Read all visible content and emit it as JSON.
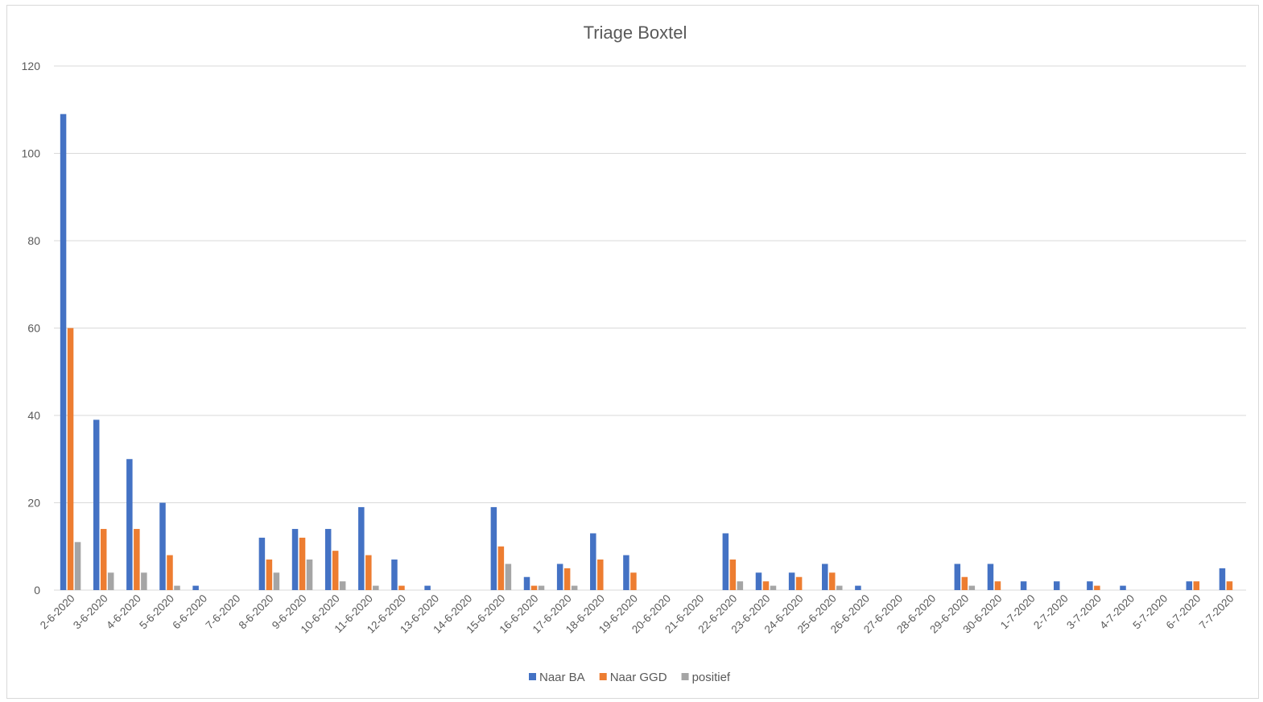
{
  "colors": {
    "naar_ba": "#4472C4",
    "naar_ggd": "#ED7D31",
    "positief": "#A5A5A5",
    "grid": "#d9d9d9",
    "text": "#595959"
  },
  "chart_data": {
    "type": "bar",
    "title": "Triage Boxtel",
    "xlabel": "",
    "ylabel": "",
    "ylim": [
      0,
      120
    ],
    "yticks": [
      0,
      20,
      40,
      60,
      80,
      100,
      120
    ],
    "grid": true,
    "legend_position": "bottom",
    "categories": [
      "2-6-2020",
      "3-6-2020",
      "4-6-2020",
      "5-6-2020",
      "6-6-2020",
      "7-6-2020",
      "8-6-2020",
      "9-6-2020",
      "10-6-2020",
      "11-6-2020",
      "12-6-2020",
      "13-6-2020",
      "14-6-2020",
      "15-6-2020",
      "16-6-2020",
      "17-6-2020",
      "18-6-2020",
      "19-6-2020",
      "20-6-2020",
      "21-6-2020",
      "22-6-2020",
      "23-6-2020",
      "24-6-2020",
      "25-6-2020",
      "26-6-2020",
      "27-6-2020",
      "28-6-2020",
      "29-6-2020",
      "30-6-2020",
      "1-7-2020",
      "2-7-2020",
      "3-7-2020",
      "4-7-2020",
      "5-7-2020",
      "6-7-2020",
      "7-7-2020"
    ],
    "series": [
      {
        "name": "Naar BA",
        "color": "#4472C4",
        "values": [
          109,
          39,
          30,
          20,
          1,
          0,
          12,
          14,
          14,
          19,
          7,
          1,
          0,
          19,
          3,
          6,
          13,
          8,
          0,
          0,
          13,
          4,
          4,
          6,
          1,
          0,
          0,
          6,
          6,
          2,
          2,
          2,
          1,
          0,
          2,
          5
        ]
      },
      {
        "name": "Naar GGD",
        "color": "#ED7D31",
        "values": [
          60,
          14,
          14,
          8,
          0,
          0,
          7,
          12,
          9,
          8,
          1,
          0,
          0,
          10,
          1,
          5,
          7,
          4,
          0,
          0,
          7,
          2,
          3,
          4,
          0,
          0,
          0,
          3,
          2,
          0,
          0,
          1,
          0,
          0,
          2,
          2
        ]
      },
      {
        "name": "positief",
        "color": "#A5A5A5",
        "values": [
          11,
          4,
          4,
          1,
          0,
          0,
          4,
          7,
          2,
          1,
          0,
          0,
          0,
          6,
          1,
          1,
          0,
          0,
          0,
          0,
          2,
          1,
          0,
          1,
          0,
          0,
          0,
          1,
          0,
          0,
          0,
          0,
          0,
          0,
          0,
          0
        ]
      }
    ]
  }
}
